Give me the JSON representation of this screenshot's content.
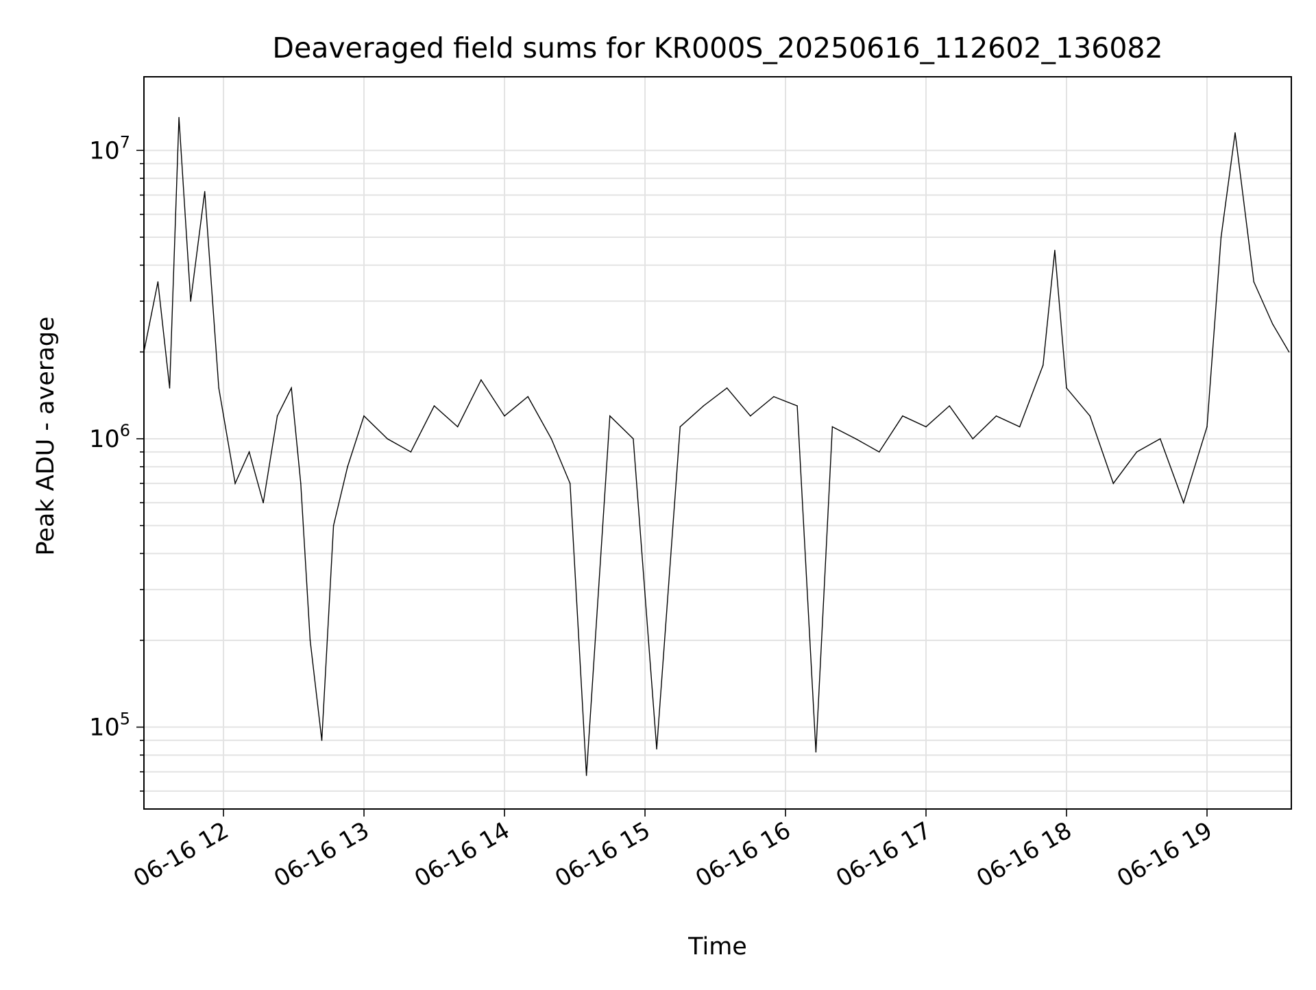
{
  "chart_data": {
    "type": "line",
    "title": "Deaveraged field sums for KR000S_20250616_112602_136082",
    "xlabel": "Time",
    "ylabel": "Peak ADU - average",
    "yscale": "log",
    "xlim": [
      "2025-06-16 11:26:02",
      "2025-06-16 19:36:00"
    ],
    "ylim": [
      52000,
      18000000
    ],
    "grid": true,
    "xtick_labels": [
      "06-16 12",
      "06-16 13",
      "06-16 14",
      "06-16 15",
      "06-16 16",
      "06-16 17",
      "06-16 18",
      "06-16 19"
    ],
    "xtick_values": [
      "2025-06-16 12:00",
      "2025-06-16 13:00",
      "2025-06-16 14:00",
      "2025-06-16 15:00",
      "2025-06-16 16:00",
      "2025-06-16 17:00",
      "2025-06-16 18:00",
      "2025-06-16 19:00"
    ],
    "ytick_labels": [
      {
        "base": "10",
        "exp": "5",
        "value": 100000
      },
      {
        "base": "10",
        "exp": "6",
        "value": 1000000
      },
      {
        "base": "10",
        "exp": "7",
        "value": 10000000
      }
    ],
    "line_color": "#000000",
    "series": [
      {
        "x": [
          "2025-06-16 11:26",
          "2025-06-16 11:32",
          "2025-06-16 11:37",
          "2025-06-16 11:41",
          "2025-06-16 11:46",
          "2025-06-16 11:52",
          "2025-06-16 11:58",
          "2025-06-16 12:05",
          "2025-06-16 12:11",
          "2025-06-16 12:17",
          "2025-06-16 12:23",
          "2025-06-16 12:29",
          "2025-06-16 12:33",
          "2025-06-16 12:37",
          "2025-06-16 12:42",
          "2025-06-16 12:47",
          "2025-06-16 12:53",
          "2025-06-16 13:00",
          "2025-06-16 13:10",
          "2025-06-16 13:20",
          "2025-06-16 13:30",
          "2025-06-16 13:40",
          "2025-06-16 13:50",
          "2025-06-16 14:00",
          "2025-06-16 14:10",
          "2025-06-16 14:20",
          "2025-06-16 14:28",
          "2025-06-16 14:35",
          "2025-06-16 14:45",
          "2025-06-16 14:55",
          "2025-06-16 15:05",
          "2025-06-16 15:15",
          "2025-06-16 15:25",
          "2025-06-16 15:35",
          "2025-06-16 15:45",
          "2025-06-16 15:55",
          "2025-06-16 16:05",
          "2025-06-16 16:13",
          "2025-06-16 16:20",
          "2025-06-16 16:30",
          "2025-06-16 16:40",
          "2025-06-16 16:50",
          "2025-06-16 17:00",
          "2025-06-16 17:10",
          "2025-06-16 17:20",
          "2025-06-16 17:30",
          "2025-06-16 17:40",
          "2025-06-16 17:50",
          "2025-06-16 17:55",
          "2025-06-16 18:00",
          "2025-06-16 18:10",
          "2025-06-16 18:20",
          "2025-06-16 18:30",
          "2025-06-16 18:40",
          "2025-06-16 18:50",
          "2025-06-16 19:00",
          "2025-06-16 19:06",
          "2025-06-16 19:12",
          "2025-06-16 19:20",
          "2025-06-16 19:28",
          "2025-06-16 19:35"
        ],
        "y": [
          2000000,
          3500000,
          1500000,
          13000000,
          3000000,
          7200000,
          1500000,
          700000,
          900000,
          600000,
          1200000,
          1500000,
          700000,
          200000,
          90000,
          500000,
          800000,
          1200000,
          1000000,
          900000,
          1300000,
          1100000,
          1600000,
          1200000,
          1400000,
          1000000,
          700000,
          68000,
          1200000,
          1000000,
          84000,
          1100000,
          1300000,
          1500000,
          1200000,
          1400000,
          1300000,
          82000,
          1100000,
          1000000,
          900000,
          1200000,
          1100000,
          1300000,
          1000000,
          1200000,
          1100000,
          1800000,
          4500000,
          1500000,
          1200000,
          700000,
          900000,
          1000000,
          600000,
          1100000,
          5000000,
          11500000,
          3500000,
          2500000,
          2000000
        ]
      }
    ]
  }
}
